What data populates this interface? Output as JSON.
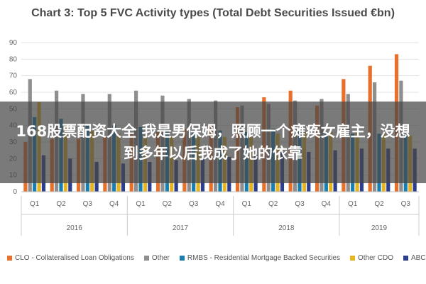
{
  "chart_data": {
    "type": "bar",
    "title": "Chart 3: Top 5 FVC Activity types (Total Debt Securities Issued €bn)",
    "xlabel": "",
    "ylabel": "",
    "ylim": [
      0,
      90
    ],
    "yticks": [
      "0",
      "10",
      "20",
      "30",
      "40",
      "50",
      "60",
      "70",
      "80",
      "90"
    ],
    "grid": true,
    "legend_position": "bottom",
    "categories": [
      "Q1",
      "Q2",
      "Q3",
      "Q4",
      "Q1",
      "Q2",
      "Q3",
      "Q4",
      "Q1",
      "Q2",
      "Q3",
      "Q4",
      "Q1",
      "Q2",
      "Q3"
    ],
    "years": [
      {
        "label": "2016",
        "span": 4
      },
      {
        "label": "2017",
        "span": 4
      },
      {
        "label": "2018",
        "span": 4
      },
      {
        "label": "2019",
        "span": 3
      }
    ],
    "series": [
      {
        "name": "CLO - Collateralised Loan Obligations",
        "color": "#e8702a",
        "values": [
          30,
          32,
          32,
          33,
          35,
          36,
          38,
          41,
          51,
          57,
          61,
          52,
          68,
          76,
          83
        ]
      },
      {
        "name": "Other",
        "color": "#8f8f8f",
        "values": [
          68,
          61,
          59,
          59,
          61,
          58,
          56,
          55,
          52,
          53,
          55,
          56,
          59,
          66,
          67
        ]
      },
      {
        "name": "RMBS - Residential Mortgage Backed Securities",
        "color": "#1a7fb0",
        "values": [
          45,
          44,
          41,
          40,
          39,
          38,
          37,
          37,
          36,
          38,
          37,
          36,
          35,
          35,
          34
        ]
      },
      {
        "name": "Other CDO",
        "color": "#e8b520",
        "values": [
          54,
          41,
          37,
          35,
          34,
          33,
          33,
          33,
          33,
          35,
          36,
          36,
          36,
          35,
          34
        ]
      },
      {
        "name": "ABCP",
        "color": "#2c3f8f",
        "values": [
          22,
          20,
          18,
          17,
          18,
          19,
          20,
          21,
          22,
          24,
          24,
          25,
          26,
          26,
          26
        ]
      }
    ]
  },
  "overlay": {
    "text": "168股票配资大全 我是男保姆，照顾一个瘫痪女雇主，没想到多年以后我成了她的依靠"
  }
}
